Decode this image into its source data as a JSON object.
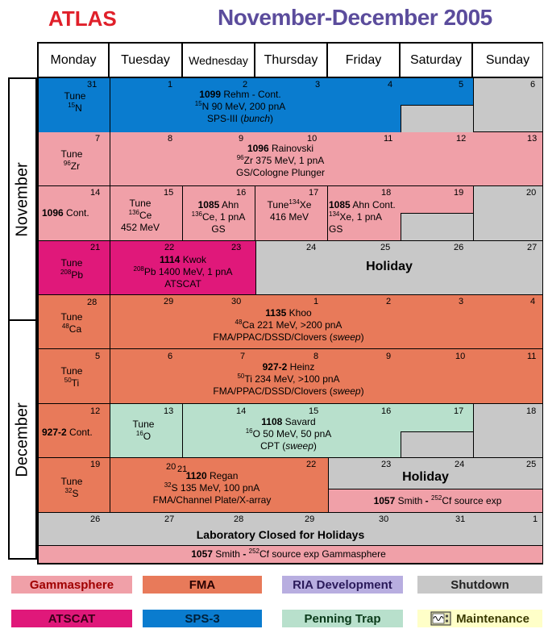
{
  "header": {
    "atlas": "ATLAS",
    "title": "November-December 2005"
  },
  "days": [
    "Monday",
    "Tuesday",
    "Wednesday",
    "Thursday",
    "Friday",
    "Saturday",
    "Sunday"
  ],
  "months": [
    "November",
    "December"
  ],
  "colors": {
    "gammasphere": "#f0a0a8",
    "fma": "#e87a5a",
    "ria": "#b8aee0",
    "shutdown": "#c8c8c8",
    "atscat": "#e0187a",
    "sps3": "#0a7ccf",
    "penning": "#b8e0cc",
    "maintenance": "#ffffc8"
  },
  "weeks": [
    {
      "dates": [
        "31",
        "1",
        "2",
        "3",
        "4",
        "5",
        "6"
      ],
      "mon_tune": "Tune",
      "mon_iso": "15",
      "mon_el": "N",
      "exp_num": "1099",
      "exp_name": "Rehm - Cont.",
      "beam_iso": "15",
      "beam": "N 90 MeV, 200 pnA",
      "setup_a": "SPS-III (",
      "setup_it": "bunch",
      "setup_b": ")"
    },
    {
      "dates": [
        "7",
        "8",
        "9",
        "10",
        "11",
        "12",
        "13"
      ],
      "mon_tune": "Tune",
      "mon_iso": "96",
      "mon_el": "Zr",
      "exp_num": "1096",
      "exp_name": "Rainovski",
      "beam_iso": "96",
      "beam": "Zr 375 MeV,  1 pnA",
      "setup": "GS/Cologne Plunger"
    },
    {
      "dates": [
        "14",
        "15",
        "16",
        "17",
        "18",
        "19",
        "20"
      ],
      "mon_num": "1096",
      "mon_txt": "Cont.",
      "tue_tune": "Tune",
      "tue_iso": "136",
      "tue_el": "Ce",
      "tue_e": "452 MeV",
      "wed_num": "1085",
      "wed_name": "Ahn",
      "wed_iso": "136",
      "wed_beam": "Ce, 1 pnA",
      "wed_setup": "GS",
      "thu_tune": "Tune",
      "thu_iso": "134",
      "thu_el": "Xe",
      "thu_e": "416 MeV",
      "fri_num": "1085",
      "fri_name": "Ahn Cont.",
      "fri_iso": "134",
      "fri_beam": "Xe, 1 pnA",
      "fri_setup": "GS"
    },
    {
      "dates": [
        "21",
        "22",
        "23",
        "24",
        "25",
        "26",
        "27"
      ],
      "mon_tune": "Tune",
      "mon_iso": "208",
      "mon_el": "Pb",
      "exp_num": "1114",
      "exp_name": "Kwok",
      "beam_iso": "208",
      "beam": "Pb 1400 MeV,  1 pnA",
      "setup": "ATSCAT",
      "holiday": "Holiday"
    },
    {
      "dates": [
        "28",
        "29",
        "30",
        "1",
        "2",
        "3",
        "4"
      ],
      "mon_tune": "Tune",
      "mon_iso": "48",
      "mon_el": "Ca",
      "exp_num": "1135",
      "exp_name": "Khoo",
      "beam_iso": "48",
      "beam": "Ca 221 MeV, >200 pnA",
      "setup_a": "FMA/PPAC/DSSD/Clovers (",
      "setup_it": "sweep",
      "setup_b": ")"
    },
    {
      "dates": [
        "5",
        "6",
        "7",
        "8",
        "9",
        "10",
        "11"
      ],
      "mon_tune": "Tune",
      "mon_iso": "50",
      "mon_el": "Ti",
      "exp_num": "927-2",
      "exp_name": "Heinz",
      "beam_iso": "50",
      "beam": "Ti 234 MeV, >100 pnA",
      "setup_a": "FMA/PPAC/DSSD/Clovers (",
      "setup_it": "sweep",
      "setup_b": ")"
    },
    {
      "dates": [
        "12",
        "13",
        "14",
        "15",
        "16",
        "17",
        "18"
      ],
      "mon_num": "927-2",
      "mon_txt": "Cont.",
      "tue_tune": "Tune",
      "tue_iso": "16",
      "tue_el": "O",
      "exp_num": "1108",
      "exp_name": "Savard",
      "beam_iso": "16",
      "beam": "O 50 MeV,  50 pnA",
      "setup_a": "CPT (",
      "setup_it": "sweep",
      "setup_b": ")"
    },
    {
      "dates": [
        "19",
        "20",
        "21",
        "22",
        "23",
        "24",
        "25"
      ],
      "mon_tune": "Tune",
      "mon_iso": "32",
      "mon_el": "S",
      "exp_num": "1120",
      "exp_name": "Regan",
      "beam_iso": "32",
      "beam": "S 135 MeV, 100 pnA",
      "setup": "FMA/Channel Plate/X-array",
      "holiday": "Holiday",
      "src_num": "1057",
      "src_name": "Smith",
      "src_dash": "-",
      "src_iso": "252",
      "src_txt": "Cf source exp"
    },
    {
      "dates": [
        "26",
        "27",
        "28",
        "29",
        "30",
        "31",
        "1"
      ],
      "closed": "Laboratory Closed for Holidays",
      "src_num": "1057",
      "src_name": "Smith",
      "src_dash": "-",
      "src_iso": "252",
      "src_txt": "Cf source exp Gammasphere"
    }
  ],
  "legend": [
    "Gammasphere",
    "FMA",
    "RIA Development",
    "Shutdown",
    "ATSCAT",
    "SPS-3",
    "Penning Trap",
    "Maintenance"
  ]
}
